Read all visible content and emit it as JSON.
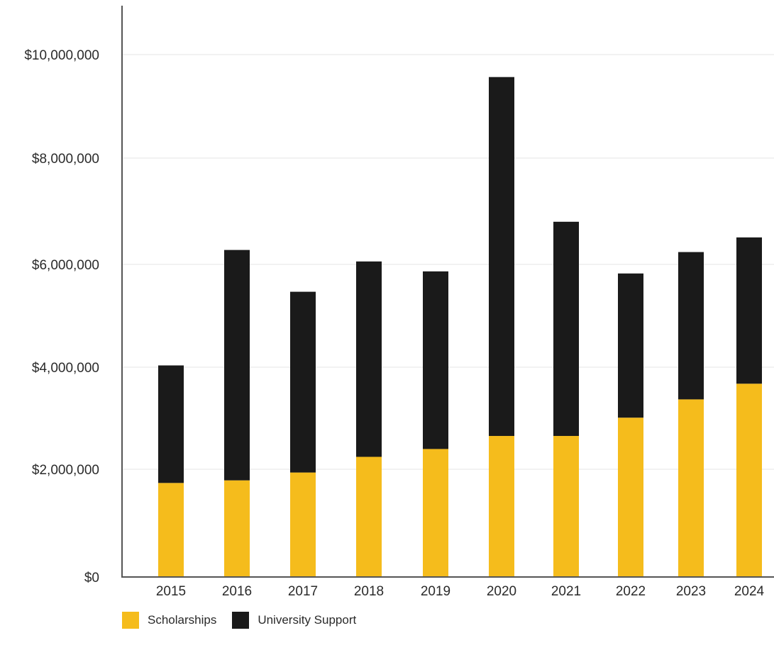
{
  "chart_data": {
    "type": "bar",
    "stacked": true,
    "categories": [
      "2015",
      "2016",
      "2017",
      "2018",
      "2019",
      "2020",
      "2021",
      "2022",
      "2023",
      "2024"
    ],
    "series": [
      {
        "name": "Scholarships",
        "color": "#F5BC1C",
        "values": [
          1800000,
          1850000,
          2000000,
          2300000,
          2450000,
          2700000,
          2700000,
          3050000,
          3400000,
          3700000
        ]
      },
      {
        "name": "University Support",
        "color": "#1A1A1A",
        "values": [
          2250000,
          4410000,
          3460000,
          3740000,
          3400000,
          6870000,
          4100000,
          2760000,
          2820000,
          2800000
        ]
      }
    ],
    "y_ticks": [
      "$0",
      "$2,000,000",
      "$4,000,000",
      "$6,000,000",
      "$8,000,000",
      "$10,000,000"
    ],
    "ylim": [
      0,
      10900000
    ],
    "grid": true,
    "legend_position": "bottom-left"
  }
}
